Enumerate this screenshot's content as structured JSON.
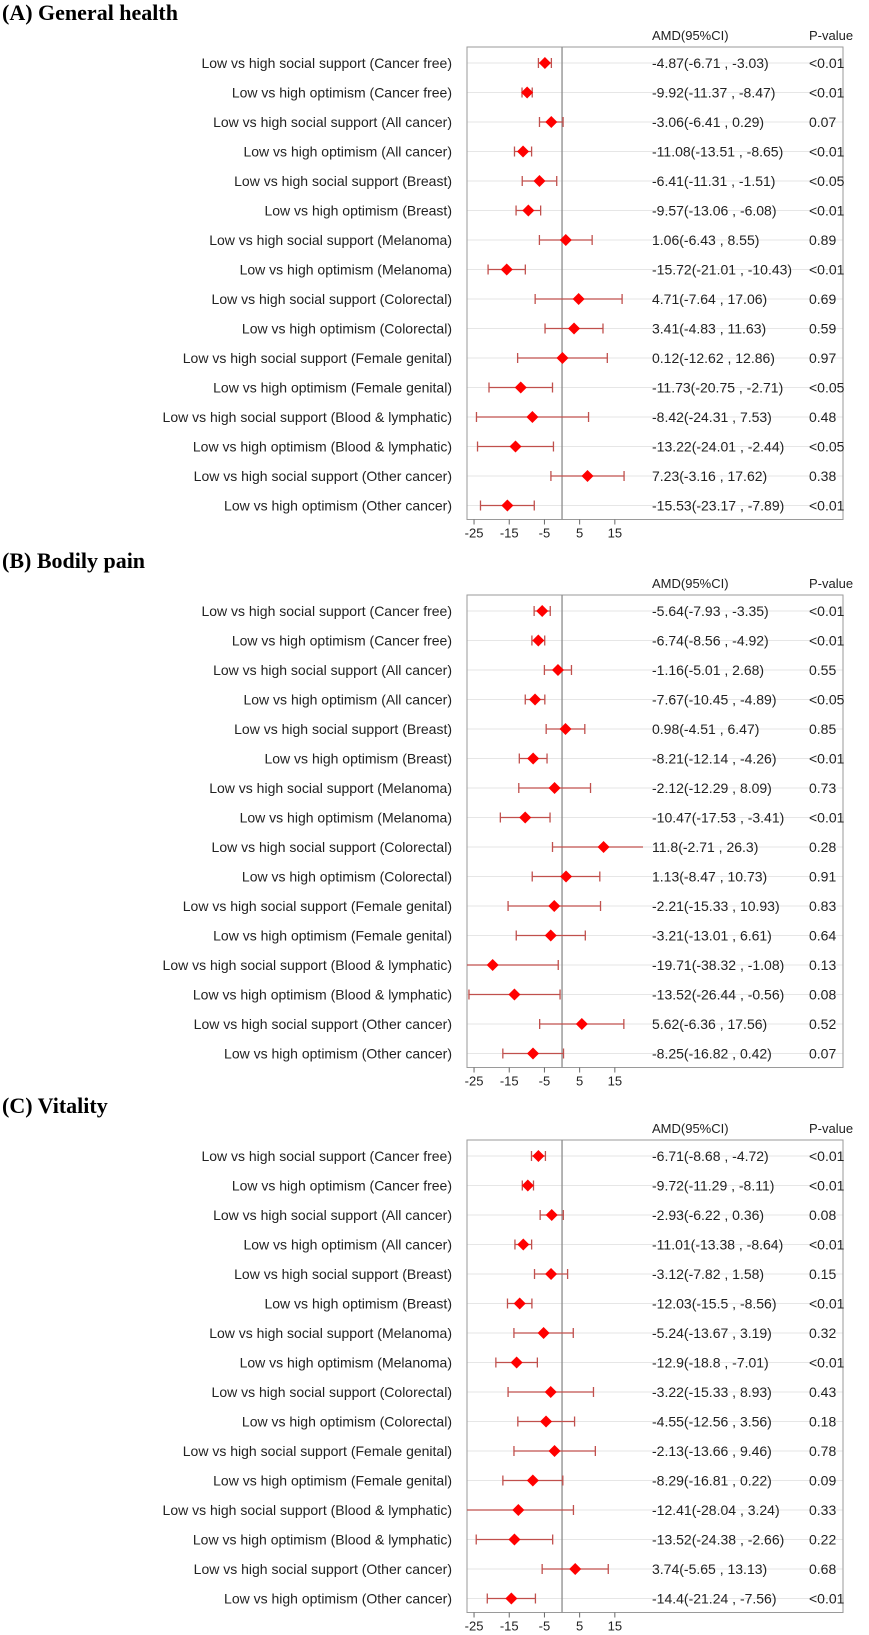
{
  "chart_data": [
    {
      "type": "forest",
      "panel_label": "(A)",
      "title": "General health",
      "estimate_header": "AMD(95%CI)",
      "p_header": "P-value",
      "xticks": [
        -25,
        -15,
        -5,
        5,
        15
      ],
      "xlim": [
        -27,
        23
      ],
      "reference_line": 0,
      "marker_color": "#ff0000",
      "ci_color": "#c0504d",
      "rows": [
        {
          "label": "Low vs high social support (Cancer free)",
          "estimate": -4.87,
          "lower": -6.71,
          "upper": -3.03,
          "ci_text": "-4.87(-6.71 , -3.03)",
          "p": "<0.01"
        },
        {
          "label": "Low vs high optimism (Cancer free)",
          "estimate": -9.92,
          "lower": -11.37,
          "upper": -8.47,
          "ci_text": "-9.92(-11.37 , -8.47)",
          "p": "<0.01"
        },
        {
          "label": "Low vs high social support (All cancer)",
          "estimate": -3.06,
          "lower": -6.41,
          "upper": 0.29,
          "ci_text": "-3.06(-6.41 , 0.29)",
          "p": "0.07"
        },
        {
          "label": "Low vs high optimism (All cancer)",
          "estimate": -11.08,
          "lower": -13.51,
          "upper": -8.65,
          "ci_text": "-11.08(-13.51 , -8.65)",
          "p": "<0.01"
        },
        {
          "label": "Low vs high social support (Breast)",
          "estimate": -6.41,
          "lower": -11.31,
          "upper": -1.51,
          "ci_text": "-6.41(-11.31 , -1.51)",
          "p": "<0.05"
        },
        {
          "label": "Low vs high optimism (Breast)",
          "estimate": -9.57,
          "lower": -13.06,
          "upper": -6.08,
          "ci_text": "-9.57(-13.06 , -6.08)",
          "p": "<0.01"
        },
        {
          "label": "Low vs high social support (Melanoma)",
          "estimate": 1.06,
          "lower": -6.43,
          "upper": 8.55,
          "ci_text": "1.06(-6.43 , 8.55)",
          "p": "0.89"
        },
        {
          "label": "Low vs high optimism (Melanoma)",
          "estimate": -15.72,
          "lower": -21.01,
          "upper": -10.43,
          "ci_text": "-15.72(-21.01 , -10.43)",
          "p": "<0.01"
        },
        {
          "label": "Low vs high social support (Colorectal)",
          "estimate": 4.71,
          "lower": -7.64,
          "upper": 17.06,
          "ci_text": "4.71(-7.64 , 17.06)",
          "p": "0.69"
        },
        {
          "label": "Low vs high optimism (Colorectal)",
          "estimate": 3.41,
          "lower": -4.83,
          "upper": 11.63,
          "ci_text": "3.41(-4.83 , 11.63)",
          "p": "0.59"
        },
        {
          "label": "Low vs high social support (Female genital)",
          "estimate": 0.12,
          "lower": -12.62,
          "upper": 12.86,
          "ci_text": "0.12(-12.62 , 12.86)",
          "p": "0.97"
        },
        {
          "label": "Low vs high optimism (Female genital)",
          "estimate": -11.73,
          "lower": -20.75,
          "upper": -2.71,
          "ci_text": "-11.73(-20.75 , -2.71)",
          "p": "<0.05"
        },
        {
          "label": "Low vs high social support (Blood & lymphatic)",
          "estimate": -8.42,
          "lower": -24.31,
          "upper": 7.53,
          "ci_text": "-8.42(-24.31 , 7.53)",
          "p": "0.48"
        },
        {
          "label": "Low vs high optimism (Blood & lymphatic)",
          "estimate": -13.22,
          "lower": -24.01,
          "upper": -2.44,
          "ci_text": "-13.22(-24.01 , -2.44)",
          "p": "<0.05"
        },
        {
          "label": "Low vs high social support (Other cancer)",
          "estimate": 7.23,
          "lower": -3.16,
          "upper": 17.62,
          "ci_text": "7.23(-3.16 , 17.62)",
          "p": "0.38"
        },
        {
          "label": "Low vs high optimism (Other cancer)",
          "estimate": -15.53,
          "lower": -23.17,
          "upper": -7.89,
          "ci_text": "-15.53(-23.17 , -7.89)",
          "p": "<0.01"
        }
      ]
    },
    {
      "type": "forest",
      "panel_label": "(B)",
      "title": "Bodily pain",
      "estimate_header": "AMD(95%CI)",
      "p_header": "P-value",
      "xticks": [
        -25,
        -15,
        -5,
        5,
        15
      ],
      "xlim": [
        -27,
        23
      ],
      "reference_line": 0,
      "marker_color": "#ff0000",
      "ci_color": "#c0504d",
      "rows": [
        {
          "label": "Low vs high social support (Cancer free)",
          "estimate": -5.64,
          "lower": -7.93,
          "upper": -3.35,
          "ci_text": "-5.64(-7.93 , -3.35)",
          "p": "<0.01"
        },
        {
          "label": "Low vs high optimism (Cancer free)",
          "estimate": -6.74,
          "lower": -8.56,
          "upper": -4.92,
          "ci_text": "-6.74(-8.56 , -4.92)",
          "p": "<0.01"
        },
        {
          "label": "Low vs high social support (All cancer)",
          "estimate": -1.16,
          "lower": -5.01,
          "upper": 2.68,
          "ci_text": "-1.16(-5.01 , 2.68)",
          "p": "0.55"
        },
        {
          "label": "Low vs high optimism (All cancer)",
          "estimate": -7.67,
          "lower": -10.45,
          "upper": -4.89,
          "ci_text": "-7.67(-10.45 , -4.89)",
          "p": "<0.05"
        },
        {
          "label": "Low vs high social support (Breast)",
          "estimate": 0.98,
          "lower": -4.51,
          "upper": 6.47,
          "ci_text": "0.98(-4.51 , 6.47)",
          "p": "0.85"
        },
        {
          "label": "Low vs high optimism (Breast)",
          "estimate": -8.21,
          "lower": -12.14,
          "upper": -4.26,
          "ci_text": "-8.21(-12.14 , -4.26)",
          "p": "<0.01"
        },
        {
          "label": "Low vs high social support (Melanoma)",
          "estimate": -2.12,
          "lower": -12.29,
          "upper": 8.09,
          "ci_text": "-2.12(-12.29 , 8.09)",
          "p": "0.73"
        },
        {
          "label": "Low vs high optimism (Melanoma)",
          "estimate": -10.47,
          "lower": -17.53,
          "upper": -3.41,
          "ci_text": "-10.47(-17.53 , -3.41)",
          "p": "<0.01"
        },
        {
          "label": "Low vs high social support (Colorectal)",
          "estimate": 11.8,
          "lower": -2.71,
          "upper": 26.3,
          "ci_text": "11.8(-2.71 , 26.3)",
          "p": "0.28"
        },
        {
          "label": "Low vs high optimism (Colorectal)",
          "estimate": 1.13,
          "lower": -8.47,
          "upper": 10.73,
          "ci_text": "1.13(-8.47 , 10.73)",
          "p": "0.91"
        },
        {
          "label": "Low vs high social support (Female genital)",
          "estimate": -2.21,
          "lower": -15.33,
          "upper": 10.93,
          "ci_text": "-2.21(-15.33 , 10.93)",
          "p": "0.83"
        },
        {
          "label": "Low vs high optimism (Female genital)",
          "estimate": -3.21,
          "lower": -13.01,
          "upper": 6.61,
          "ci_text": "-3.21(-13.01 , 6.61)",
          "p": "0.64"
        },
        {
          "label": "Low vs high social support (Blood & lymphatic)",
          "estimate": -19.71,
          "lower": -38.32,
          "upper": -1.08,
          "ci_text": "-19.71(-38.32 , -1.08)",
          "p": "0.13"
        },
        {
          "label": "Low vs high optimism (Blood & lymphatic)",
          "estimate": -13.52,
          "lower": -26.44,
          "upper": -0.56,
          "ci_text": "-13.52(-26.44 , -0.56)",
          "p": "0.08"
        },
        {
          "label": "Low vs high social support (Other cancer)",
          "estimate": 5.62,
          "lower": -6.36,
          "upper": 17.56,
          "ci_text": "5.62(-6.36 , 17.56)",
          "p": "0.52"
        },
        {
          "label": "Low vs high optimism (Other cancer)",
          "estimate": -8.25,
          "lower": -16.82,
          "upper": 0.42,
          "ci_text": "-8.25(-16.82 , 0.42)",
          "p": "0.07"
        }
      ]
    },
    {
      "type": "forest",
      "panel_label": "(C)",
      "title": "Vitality",
      "estimate_header": "AMD(95%CI)",
      "p_header": "P-value",
      "xticks": [
        -25,
        -15,
        -5,
        5,
        15
      ],
      "xlim": [
        -27,
        23
      ],
      "reference_line": 0,
      "marker_color": "#ff0000",
      "ci_color": "#c0504d",
      "rows": [
        {
          "label": "Low vs high social support (Cancer free)",
          "estimate": -6.71,
          "lower": -8.68,
          "upper": -4.72,
          "ci_text": "-6.71(-8.68 , -4.72)",
          "p": "<0.01"
        },
        {
          "label": "Low vs high optimism (Cancer free)",
          "estimate": -9.72,
          "lower": -11.29,
          "upper": -8.11,
          "ci_text": "-9.72(-11.29 , -8.11)",
          "p": "<0.01"
        },
        {
          "label": "Low vs high social support (All cancer)",
          "estimate": -2.93,
          "lower": -6.22,
          "upper": 0.36,
          "ci_text": "-2.93(-6.22 , 0.36)",
          "p": "0.08"
        },
        {
          "label": "Low vs high optimism (All cancer)",
          "estimate": -11.01,
          "lower": -13.38,
          "upper": -8.64,
          "ci_text": "-11.01(-13.38 , -8.64)",
          "p": "<0.01"
        },
        {
          "label": "Low vs high social support (Breast)",
          "estimate": -3.12,
          "lower": -7.82,
          "upper": 1.58,
          "ci_text": "-3.12(-7.82 , 1.58)",
          "p": "0.15"
        },
        {
          "label": "Low vs high optimism (Breast)",
          "estimate": -12.03,
          "lower": -15.5,
          "upper": -8.56,
          "ci_text": "-12.03(-15.5 , -8.56)",
          "p": "<0.01"
        },
        {
          "label": "Low vs high social support (Melanoma)",
          "estimate": -5.24,
          "lower": -13.67,
          "upper": 3.19,
          "ci_text": "-5.24(-13.67 , 3.19)",
          "p": "0.32"
        },
        {
          "label": "Low vs high optimism (Melanoma)",
          "estimate": -12.9,
          "lower": -18.8,
          "upper": -7.01,
          "ci_text": "-12.9(-18.8 , -7.01)",
          "p": "<0.01"
        },
        {
          "label": "Low vs high social support (Colorectal)",
          "estimate": -3.22,
          "lower": -15.33,
          "upper": 8.93,
          "ci_text": "-3.22(-15.33 , 8.93)",
          "p": "0.43"
        },
        {
          "label": "Low vs high optimism (Colorectal)",
          "estimate": -4.55,
          "lower": -12.56,
          "upper": 3.56,
          "ci_text": "-4.55(-12.56 , 3.56)",
          "p": "0.18"
        },
        {
          "label": "Low vs high social support (Female genital)",
          "estimate": -2.13,
          "lower": -13.66,
          "upper": 9.46,
          "ci_text": "-2.13(-13.66 , 9.46)",
          "p": "0.78"
        },
        {
          "label": "Low vs high optimism (Female genital)",
          "estimate": -8.29,
          "lower": -16.81,
          "upper": 0.22,
          "ci_text": "-8.29(-16.81 , 0.22)",
          "p": "0.09"
        },
        {
          "label": "Low vs high social support (Blood & lymphatic)",
          "estimate": -12.41,
          "lower": -28.04,
          "upper": 3.24,
          "ci_text": "-12.41(-28.04 , 3.24)",
          "p": "0.33"
        },
        {
          "label": "Low vs high optimism (Blood & lymphatic)",
          "estimate": -13.52,
          "lower": -24.38,
          "upper": -2.66,
          "ci_text": "-13.52(-24.38 , -2.66)",
          "p": "0.22"
        },
        {
          "label": "Low vs high social support (Other cancer)",
          "estimate": 3.74,
          "lower": -5.65,
          "upper": 13.13,
          "ci_text": "3.74(-5.65 , 13.13)",
          "p": "0.68"
        },
        {
          "label": "Low vs high optimism (Other cancer)",
          "estimate": -14.4,
          "lower": -21.24,
          "upper": -7.56,
          "ci_text": "-14.4(-21.24 , -7.56)",
          "p": "<0.01"
        }
      ]
    }
  ]
}
